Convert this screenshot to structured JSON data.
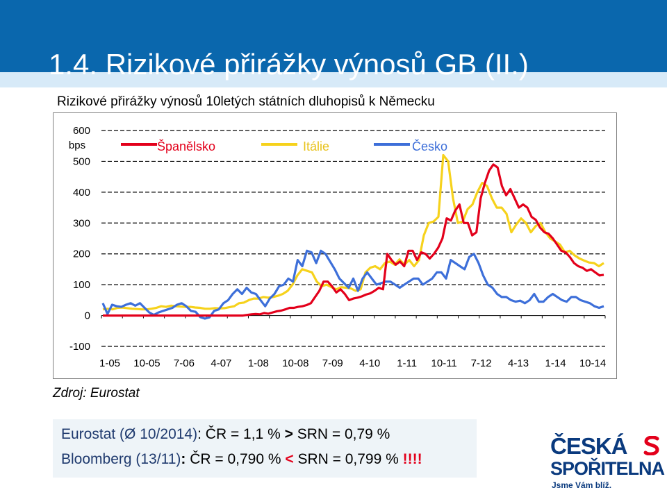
{
  "slide": {
    "title": "1.4. Rizikové přirážky výnosů GB (II.)"
  },
  "chart_data": {
    "type": "line",
    "title": "Rizikové přirážky výnosů 10letých státních dluhopisů k Německu",
    "unit": "bps",
    "xlabel": "",
    "ylabel": "",
    "ylim": [
      -100,
      600
    ],
    "yticks": [
      600,
      500,
      400,
      300,
      200,
      100,
      0,
      -100
    ],
    "xticks": [
      "1-05",
      "10-05",
      "7-06",
      "4-07",
      "1-08",
      "10-08",
      "7-09",
      "4-10",
      "1-11",
      "10-11",
      "7-12",
      "4-13",
      "1-14",
      "10-14"
    ],
    "grid": "horizontal dashed",
    "legend": "top, inside",
    "colors": {
      "Španělsko": "#e3001b",
      "Itálie": "#f6d21c",
      "Česko": "#3d6fd9"
    },
    "x_start": "2005-01",
    "series": [
      {
        "name": "Španělsko",
        "values": [
          0,
          0,
          0,
          0,
          0,
          0,
          0,
          0,
          0,
          0,
          0,
          0,
          0,
          0,
          0,
          0,
          0,
          0,
          0,
          0,
          0,
          0,
          0,
          0,
          0,
          0,
          0,
          0,
          0,
          0,
          0,
          0,
          0,
          0,
          2,
          4,
          5,
          4,
          8,
          6,
          10,
          14,
          16,
          20,
          25,
          25,
          28,
          30,
          34,
          40,
          60,
          80,
          110,
          110,
          95,
          75,
          85,
          70,
          50,
          55,
          58,
          62,
          68,
          72,
          80,
          90,
          85,
          200,
          180,
          165,
          175,
          160,
          210,
          210,
          180,
          205,
          200,
          185,
          200,
          220,
          250,
          315,
          308,
          340,
          360,
          300,
          300,
          260,
          270,
          380,
          430,
          470,
          490,
          480,
          420,
          390,
          410,
          380,
          350,
          360,
          350,
          320,
          310,
          285,
          270,
          265,
          250,
          230,
          210,
          205,
          190,
          170,
          160,
          155,
          145,
          150,
          140,
          130,
          132
        ]
      },
      {
        "name": "Itálie",
        "values": [
          20,
          22,
          20,
          25,
          26,
          24,
          22,
          21,
          20,
          20,
          22,
          25,
          30,
          28,
          32,
          30,
          29,
          28,
          28,
          26,
          25,
          22,
          22,
          24,
          23,
          24,
          27,
          30,
          40,
          42,
          50,
          55,
          55,
          60,
          58,
          60,
          64,
          70,
          80,
          100,
          130,
          150,
          145,
          140,
          110,
          95,
          100,
          92,
          85,
          92,
          90,
          88,
          80,
          85,
          140,
          155,
          160,
          150,
          170,
          175,
          165,
          182,
          165,
          180,
          160,
          180,
          260,
          300,
          305,
          320,
          520,
          500,
          380,
          300,
          305,
          345,
          360,
          400,
          430,
          420,
          380,
          350,
          350,
          330,
          270,
          295,
          315,
          300,
          270,
          290,
          300,
          270,
          250,
          240,
          230,
          205,
          210,
          195,
          185,
          178,
          172,
          170,
          160,
          170
        ]
      },
      {
        "name": "Česko",
        "values": [
          40,
          5,
          35,
          30,
          28,
          35,
          40,
          32,
          40,
          25,
          10,
          2,
          10,
          15,
          20,
          25,
          35,
          40,
          30,
          15,
          12,
          -5,
          -10,
          -6,
          15,
          20,
          40,
          50,
          70,
          85,
          70,
          90,
          75,
          70,
          50,
          30,
          55,
          70,
          95,
          100,
          120,
          110,
          180,
          160,
          210,
          205,
          170,
          210,
          200,
          175,
          150,
          120,
          105,
          90,
          120,
          80,
          120,
          140,
          120,
          100,
          105,
          110,
          110,
          100,
          90,
          100,
          110,
          120,
          120,
          100,
          110,
          120,
          140,
          140,
          120,
          180,
          170,
          160,
          150,
          190,
          200,
          170,
          130,
          100,
          90,
          70,
          60,
          60,
          50,
          45,
          48,
          40,
          50,
          70,
          45,
          45,
          60,
          70,
          60,
          50,
          45,
          60,
          60,
          50,
          45,
          40,
          30,
          25,
          30
        ]
      }
    ]
  },
  "source": {
    "text": "Zdroj: Eurostat"
  },
  "info": {
    "line1": {
      "a": "Eurostat (Ø 10/2014)",
      "b": ": ",
      "c": "ČR = 1,1 %",
      "d": " > ",
      "e": "SRN = 0,79 %"
    },
    "line2": {
      "a": "Bloomberg (13/11)",
      "b": ": ",
      "c": "ČR = 0,790 %",
      "d": " < ",
      "e": "SRN = 0,799 % ",
      "f": "!!!!"
    }
  },
  "logo": {
    "line1": "ČESKÁ",
    "line2": "SPOŘITELNA",
    "line3": "Jsme Vám blíž."
  }
}
